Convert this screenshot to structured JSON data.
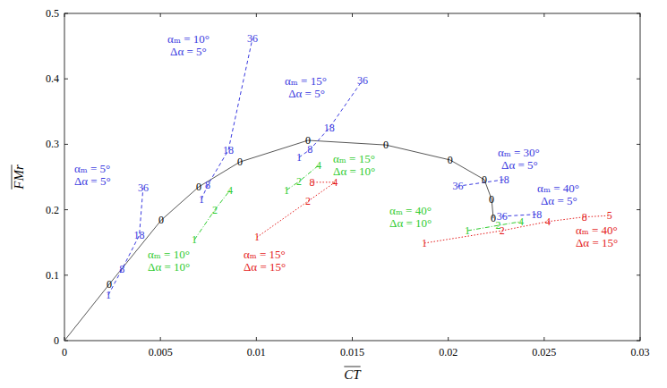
{
  "chart_data": {
    "type": "line",
    "xlabel": "CT",
    "ylabel": "FMr",
    "xlim": [
      0,
      0.03
    ],
    "ylim": [
      0,
      0.5
    ],
    "xticks": [
      0,
      0.005,
      0.01,
      0.015,
      0.02,
      0.025,
      0.03
    ],
    "yticks": [
      0,
      0.1,
      0.2,
      0.3,
      0.4,
      0.5
    ],
    "grid": false,
    "series": [
      {
        "color": "#444444",
        "line_style": "solid",
        "x": [
          0,
          0.00233,
          0.00504,
          0.007,
          0.00914,
          0.01269,
          0.01675,
          0.0201,
          0.02188,
          0.02226,
          0.02235
        ],
        "values": [
          0,
          0.086,
          0.184,
          0.235,
          0.273,
          0.306,
          0.299,
          0.276,
          0.246,
          0.216,
          0.187
        ],
        "point_labels": [
          null,
          "0",
          "0",
          "0",
          "0",
          "0",
          "0",
          "0",
          "0",
          "0",
          "0"
        ]
      },
      {
        "color": "#3a3ae0",
        "line_style": "dashed",
        "x": [
          0.00229,
          0.003,
          0.0039,
          0.0041
        ],
        "values": [
          0.07,
          0.109,
          0.161,
          0.234
        ],
        "point_labels": [
          "1",
          "8",
          "18",
          "36"
        ]
      },
      {
        "color": "#3a3ae0",
        "line_style": "dashed",
        "x": [
          0.00714,
          0.00747,
          0.00854,
          0.0098
        ],
        "values": [
          0.216,
          0.238,
          0.291,
          0.462
        ],
        "point_labels": [
          "1",
          "8",
          "18",
          "36"
        ]
      },
      {
        "color": "#3a3ae0",
        "line_style": "dashed",
        "x": [
          0.01222,
          0.0128,
          0.0138,
          0.01554
        ],
        "values": [
          0.28,
          0.292,
          0.325,
          0.398
        ],
        "point_labels": [
          "1",
          "8",
          "18",
          "36"
        ]
      },
      {
        "color": "#3a3ae0",
        "line_style": "dashed",
        "x": [
          0.0229,
          0.0205
        ],
        "values": [
          0.246,
          0.236
        ],
        "point_labels": [
          "18",
          "36"
        ]
      },
      {
        "color": "#3a3ae0",
        "line_style": "dashed",
        "x": [
          0.0246,
          0.0228
        ],
        "values": [
          0.193,
          0.19
        ],
        "point_labels": [
          "18",
          "36"
        ]
      },
      {
        "color": "#2fcc2f",
        "line_style": "dashdot",
        "x": [
          0.00677,
          0.00784,
          0.00863
        ],
        "values": [
          0.154,
          0.2,
          0.23
        ],
        "point_labels": [
          "1",
          "2",
          "4"
        ]
      },
      {
        "color": "#2fcc2f",
        "line_style": "dashdot",
        "x": [
          0.01157,
          0.01222,
          0.01325
        ],
        "values": [
          0.23,
          0.243,
          0.268
        ],
        "point_labels": [
          "1",
          "2",
          "4"
        ]
      },
      {
        "color": "#2fcc2f",
        "line_style": "dashdot",
        "x": [
          0.021,
          0.0226,
          0.0238
        ],
        "values": [
          0.168,
          0.176,
          0.182
        ],
        "point_labels": [
          "1",
          "2",
          "4"
        ]
      },
      {
        "color": "#e41a1a",
        "line_style": "dotted",
        "x": [
          0.01003,
          0.01269,
          0.0141,
          0.0129
        ],
        "values": [
          0.158,
          0.213,
          0.242,
          0.242
        ],
        "point_labels": [
          "1",
          "2",
          "4",
          "8"
        ]
      },
      {
        "color": "#e41a1a",
        "line_style": "dotted",
        "x": [
          0.01876,
          0.0228,
          0.0252,
          0.0271,
          0.0284
        ],
        "values": [
          0.149,
          0.168,
          0.182,
          0.189,
          0.191
        ],
        "point_labels": [
          "1",
          "2",
          "4",
          "8",
          "5"
        ]
      }
    ],
    "annotations": [
      {
        "text": "αₘ = 5°",
        "x": 0.00051,
        "y": 0.257,
        "color": "#3a3ae0"
      },
      {
        "text": "Δα = 5°",
        "x": 0.00051,
        "y": 0.238,
        "color": "#3a3ae0"
      },
      {
        "text": "αₘ = 10°",
        "x": 0.00537,
        "y": 0.455,
        "color": "#3a3ae0"
      },
      {
        "text": "Δα = 5°",
        "x": 0.00551,
        "y": 0.436,
        "color": "#3a3ae0"
      },
      {
        "text": "αₘ = 15°",
        "x": 0.01148,
        "y": 0.391,
        "color": "#3a3ae0"
      },
      {
        "text": "Δα = 5°",
        "x": 0.01167,
        "y": 0.372,
        "color": "#3a3ae0"
      },
      {
        "text": "αₘ = 30°",
        "x": 0.02258,
        "y": 0.281,
        "color": "#3a3ae0"
      },
      {
        "text": "Δα = 5°",
        "x": 0.02277,
        "y": 0.262,
        "color": "#3a3ae0"
      },
      {
        "text": "αₘ = 40°",
        "x": 0.02464,
        "y": 0.227,
        "color": "#3a3ae0"
      },
      {
        "text": "Δα = 5°",
        "x": 0.02482,
        "y": 0.208,
        "color": "#3a3ae0"
      },
      {
        "text": "αₘ = 10°",
        "x": 0.00434,
        "y": 0.126,
        "color": "#2fcc2f"
      },
      {
        "text": "Δα = 10°",
        "x": 0.00434,
        "y": 0.107,
        "color": "#2fcc2f"
      },
      {
        "text": "αₘ = 15°",
        "x": 0.014,
        "y": 0.272,
        "color": "#2fcc2f"
      },
      {
        "text": "Δα = 10°",
        "x": 0.014,
        "y": 0.253,
        "color": "#2fcc2f"
      },
      {
        "text": "αₘ = 40°",
        "x": 0.01694,
        "y": 0.193,
        "color": "#2fcc2f"
      },
      {
        "text": "Δα = 10°",
        "x": 0.01694,
        "y": 0.174,
        "color": "#2fcc2f"
      },
      {
        "text": "αₘ = 15°",
        "x": 0.00933,
        "y": 0.126,
        "color": "#e41a1a"
      },
      {
        "text": "Δα = 15°",
        "x": 0.00933,
        "y": 0.107,
        "color": "#e41a1a"
      },
      {
        "text": "αₘ = 40°",
        "x": 0.02664,
        "y": 0.163,
        "color": "#e41a1a"
      },
      {
        "text": "Δα = 15°",
        "x": 0.02664,
        "y": 0.143,
        "color": "#e41a1a"
      }
    ]
  }
}
